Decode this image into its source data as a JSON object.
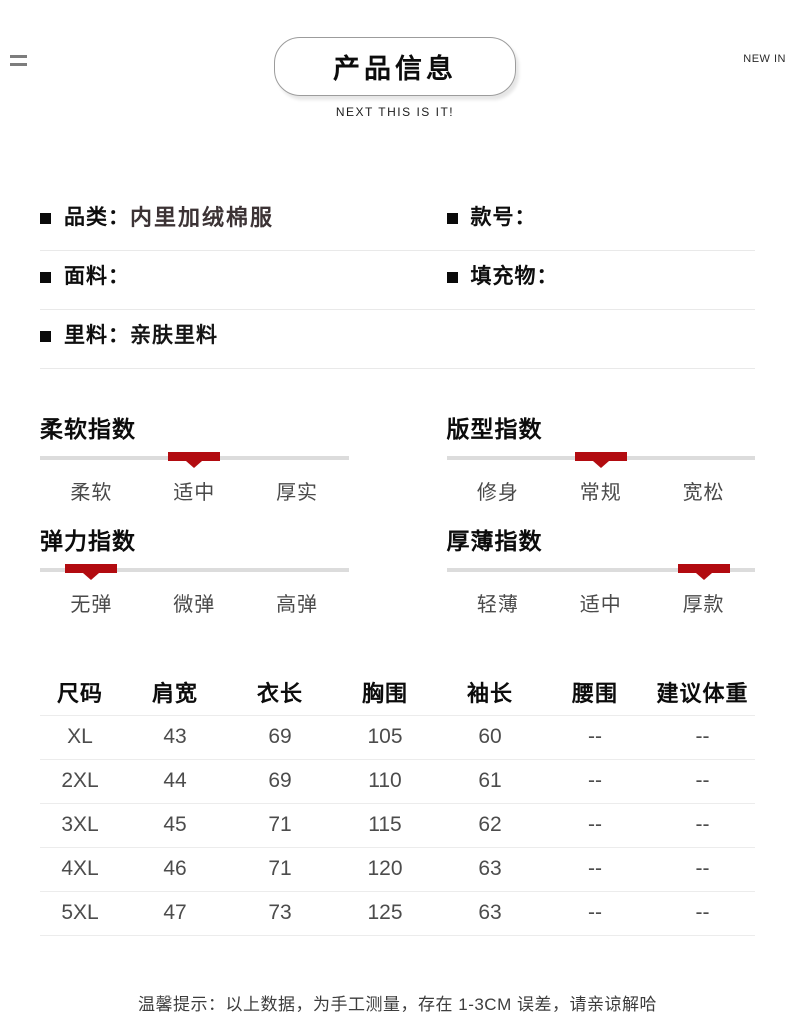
{
  "header": {
    "title": "产品信息",
    "subtitle": "NEXT THIS IS IT!",
    "corner_label": "NEW IN"
  },
  "icons": {
    "menu": "equals-menu-icon",
    "bullet": "square-bullet-icon",
    "marker": "red-slider-marker-with-down-triangle"
  },
  "attributes": {
    "rows": [
      {
        "left": {
          "label": "品类：",
          "value": "内里加绒棉服"
        },
        "right": {
          "label": "款号：",
          "value": ""
        }
      },
      {
        "left": {
          "label": "面料：",
          "value": ""
        },
        "right": {
          "label": "填充物：",
          "value": ""
        }
      },
      {
        "left": {
          "label": "里料：",
          "value": "亲肤里料"
        }
      }
    ]
  },
  "indexes": [
    {
      "title": "柔软指数",
      "labels": [
        "柔软",
        "适中",
        "厚实"
      ],
      "active": 1
    },
    {
      "title": "版型指数",
      "labels": [
        "修身",
        "常规",
        "宽松"
      ],
      "active": 1
    },
    {
      "title": "弹力指数",
      "labels": [
        "无弹",
        "微弹",
        "高弹"
      ],
      "active": 0
    },
    {
      "title": "厚薄指数",
      "labels": [
        "轻薄",
        "适中",
        "厚款"
      ],
      "active": 2
    }
  ],
  "size_table": {
    "headers": [
      "尺码",
      "肩宽",
      "衣长",
      "胸围",
      "袖长",
      "腰围",
      "建议体重"
    ],
    "rows": [
      [
        "XL",
        "43",
        "69",
        "105",
        "60",
        "--",
        "--"
      ],
      [
        "2XL",
        "44",
        "69",
        "110",
        "61",
        "--",
        "--"
      ],
      [
        "3XL",
        "45",
        "71",
        "115",
        "62",
        "--",
        "--"
      ],
      [
        "4XL",
        "46",
        "71",
        "120",
        "63",
        "--",
        "--"
      ],
      [
        "5XL",
        "47",
        "73",
        "125",
        "63",
        "--",
        "--"
      ]
    ]
  },
  "footer": {
    "note": "温馨提示：以上数据，为手工测量，存在 1-3CM 误差，请亲谅解哈"
  },
  "colors": {
    "accent_red": "#b20b10",
    "track_gray": "#dcdcdc",
    "divider": "#e9e9e9",
    "table_text": "#4c4c4c"
  }
}
